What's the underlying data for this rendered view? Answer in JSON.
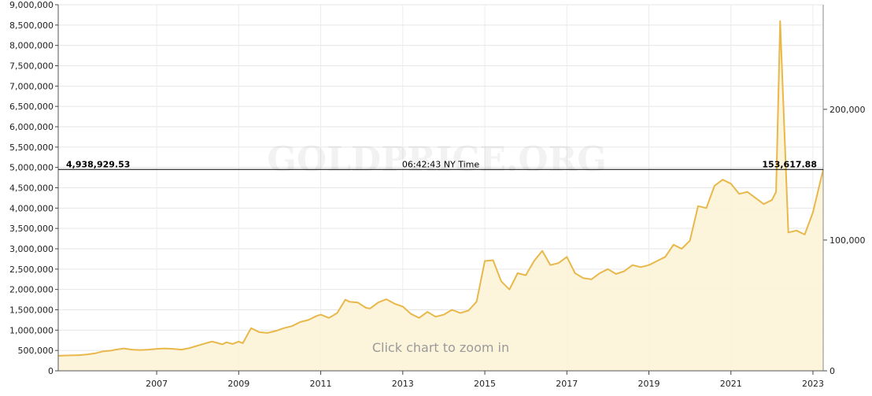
{
  "chart_data": {
    "type": "area",
    "title": "",
    "xlabel": "",
    "ylabel": "",
    "watermark": "GOLDPRICE.ORG",
    "hint": "Click chart to zoom in",
    "crosshair": {
      "left_value": "4,938,929.53",
      "time": "06:42:43 NY Time",
      "right_value": "153,617.88"
    },
    "left_axis": {
      "ylim": [
        0,
        9000000
      ],
      "ticks": [
        0,
        500000,
        1000000,
        1500000,
        2000000,
        2500000,
        3000000,
        3500000,
        4000000,
        4500000,
        5000000,
        5500000,
        6000000,
        6500000,
        7000000,
        7500000,
        8000000,
        8500000,
        9000000
      ],
      "tick_labels": [
        "0",
        "500,000",
        "1,000,000",
        "1,500,000",
        "2,000,000",
        "2,500,000",
        "3,000,000",
        "3,500,000",
        "4,000,000",
        "4,500,000",
        "5,000,000",
        "5,500,000",
        "6,000,000",
        "6,500,000",
        "7,000,000",
        "7,500,000",
        "8,000,000",
        "8,500,000",
        "9,000,000"
      ]
    },
    "right_axis": {
      "ylim": [
        0,
        280000
      ],
      "ticks": [
        0,
        100000,
        200000
      ],
      "tick_labels": [
        "0",
        "100,000",
        "200,000"
      ]
    },
    "x_axis": {
      "xlim": [
        2004.6,
        2023.25
      ],
      "ticks": [
        2007,
        2009,
        2011,
        2013,
        2015,
        2017,
        2019,
        2021,
        2023
      ],
      "tick_labels": [
        "2007",
        "2009",
        "2011",
        "2013",
        "2015",
        "2017",
        "2019",
        "2021",
        "2023"
      ]
    },
    "grid": true,
    "line_color": "#e8b84a",
    "fill_color": "#fdf3d8",
    "series": [
      {
        "x": [
          2004.6,
          2004.9,
          2005.1,
          2005.3,
          2005.5,
          2005.7,
          2005.9,
          2006.0,
          2006.2,
          2006.4,
          2006.6,
          2006.8,
          2007.0,
          2007.2,
          2007.4,
          2007.6,
          2007.8,
          2008.0,
          2008.2,
          2008.35,
          2008.5,
          2008.6,
          2008.7,
          2008.85,
          2009.0,
          2009.1,
          2009.3,
          2009.5,
          2009.7,
          2009.9,
          2010.1,
          2010.3,
          2010.5,
          2010.7,
          2010.9,
          2011.0,
          2011.2,
          2011.4,
          2011.6,
          2011.7,
          2011.9,
          2012.1,
          2012.2,
          2012.4,
          2012.6,
          2012.8,
          2013.0,
          2013.2,
          2013.4,
          2013.6,
          2013.8,
          2014.0,
          2014.2,
          2014.4,
          2014.6,
          2014.8,
          2015.0,
          2015.2,
          2015.4,
          2015.6,
          2015.8,
          2016.0,
          2016.2,
          2016.4,
          2016.6,
          2016.8,
          2017.0,
          2017.2,
          2017.4,
          2017.6,
          2017.8,
          2018.0,
          2018.2,
          2018.4,
          2018.6,
          2018.8,
          2019.0,
          2019.2,
          2019.4,
          2019.6,
          2019.8,
          2020.0,
          2020.2,
          2020.4,
          2020.6,
          2020.8,
          2021.0,
          2021.2,
          2021.4,
          2021.6,
          2021.8,
          2022.0,
          2022.1,
          2022.2,
          2022.4,
          2022.6,
          2022.8,
          2023.0,
          2023.25
        ],
        "y": [
          370000,
          380000,
          385000,
          400000,
          430000,
          480000,
          500000,
          520000,
          550000,
          520000,
          510000,
          520000,
          540000,
          550000,
          540000,
          520000,
          560000,
          620000,
          680000,
          720000,
          680000,
          650000,
          700000,
          660000,
          720000,
          680000,
          1050000,
          950000,
          930000,
          980000,
          1050000,
          1100000,
          1200000,
          1250000,
          1350000,
          1380000,
          1300000,
          1420000,
          1750000,
          1700000,
          1680000,
          1550000,
          1530000,
          1680000,
          1760000,
          1650000,
          1580000,
          1400000,
          1300000,
          1450000,
          1330000,
          1380000,
          1500000,
          1420000,
          1480000,
          1700000,
          2700000,
          2720000,
          2200000,
          2000000,
          2400000,
          2350000,
          2700000,
          2950000,
          2600000,
          2650000,
          2800000,
          2400000,
          2280000,
          2250000,
          2400000,
          2500000,
          2380000,
          2450000,
          2600000,
          2550000,
          2600000,
          2700000,
          2800000,
          3100000,
          3000000,
          3200000,
          4050000,
          4000000,
          4550000,
          4700000,
          4600000,
          4350000,
          4400000,
          4250000,
          4100000,
          4200000,
          4400000,
          8600000,
          3400000,
          3450000,
          3350000,
          3900000,
          4950000
        ]
      }
    ]
  }
}
